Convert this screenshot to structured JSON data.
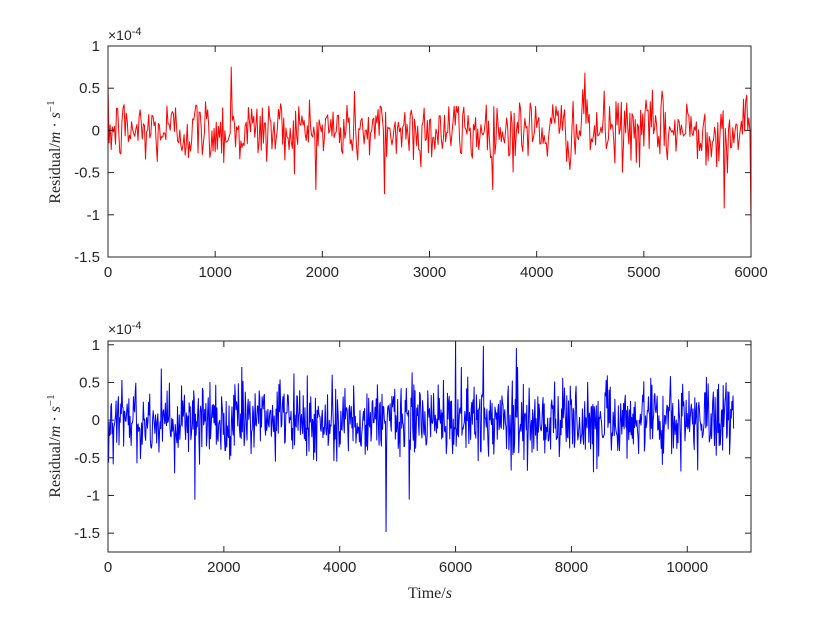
{
  "chart_data": [
    {
      "type": "line",
      "color": "#ff0000",
      "xlim": [
        0,
        6000
      ],
      "ylim": [
        -1.5,
        1
      ],
      "xticks": [
        "0",
        "1000",
        "2000",
        "3000",
        "4000",
        "5000",
        "6000"
      ],
      "xtick_values": [
        0,
        1000,
        2000,
        3000,
        4000,
        5000,
        6000
      ],
      "yticks": [
        "1",
        "0.5",
        "0",
        "-0.5",
        "-1",
        "-1.5"
      ],
      "ytick_values": [
        1,
        0.5,
        0,
        -0.5,
        -1,
        -1.5
      ],
      "exponent": {
        "base": "×10",
        "power": "-4"
      },
      "ylabel": {
        "text": "Residual/",
        "m": "m",
        "dot": " · ",
        "s": "s",
        "power": "−1"
      },
      "xlabel": "",
      "samples": 600,
      "peaks": [
        {
          "x": 1150,
          "y": 0.75
        },
        {
          "x": 4450,
          "y": 0.68
        },
        {
          "x": 2580,
          "y": -0.75
        },
        {
          "x": 5750,
          "y": -0.92
        },
        {
          "x": 6000,
          "y": -1.13
        }
      ]
    },
    {
      "type": "line",
      "color": "#0000ff",
      "xlim": [
        0,
        11100
      ],
      "ylim": [
        -1.75,
        1.05
      ],
      "xticks": [
        "0",
        "2000",
        "4000",
        "6000",
        "8000",
        "10000"
      ],
      "xtick_values": [
        0,
        2000,
        4000,
        6000,
        8000,
        10000
      ],
      "yticks": [
        "1",
        "0.5",
        "0",
        "-0.5",
        "-1",
        "-1.5"
      ],
      "ytick_values": [
        1,
        0.5,
        0,
        -0.5,
        -1,
        -1.5
      ],
      "exponent": {
        "base": "×10",
        "power": "-4"
      },
      "ylabel": {
        "text": "Residual/",
        "m": "m",
        "dot": " · ",
        "s": "s",
        "power": "−1"
      },
      "xlabel": {
        "text": "Time/",
        "s": "s"
      },
      "x_end": 10800,
      "samples": 1080,
      "peaks": [
        {
          "x": 6000,
          "y": 1.05
        },
        {
          "x": 6480,
          "y": 0.98
        },
        {
          "x": 7050,
          "y": 0.95
        },
        {
          "x": 4800,
          "y": -1.48
        },
        {
          "x": 1500,
          "y": -1.05
        },
        {
          "x": 5200,
          "y": -1.05
        }
      ]
    }
  ]
}
